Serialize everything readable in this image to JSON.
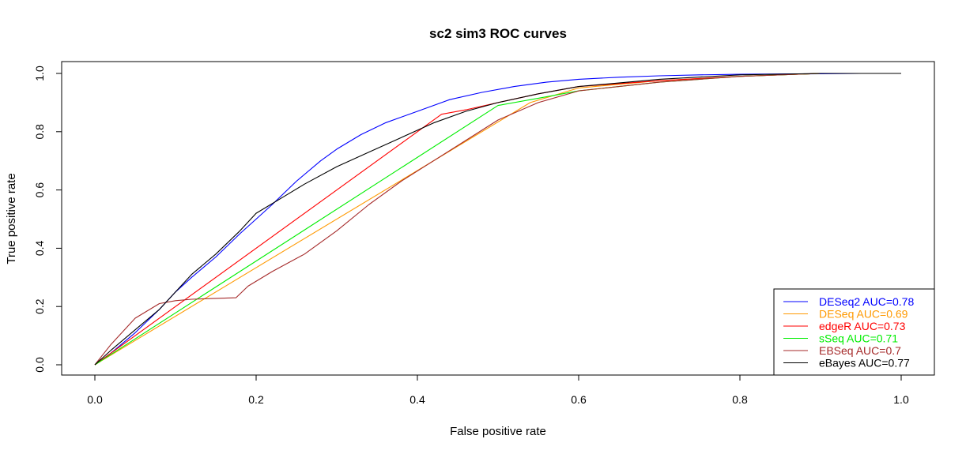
{
  "chart_data": {
    "type": "line",
    "title": "sc2 sim3 ROC curves",
    "xlabel": "False positive rate",
    "ylabel": "True positive rate",
    "xlim": [
      0,
      1
    ],
    "ylim": [
      0,
      1
    ],
    "xticks": [
      "0.0",
      "0.2",
      "0.4",
      "0.6",
      "0.8",
      "1.0"
    ],
    "yticks": [
      "0.0",
      "0.2",
      "0.4",
      "0.6",
      "0.8",
      "1.0"
    ],
    "grid": false,
    "legend_position": "bottom-right",
    "series": [
      {
        "name": "DESeq2 AUC=0.78",
        "color": "#0000ff",
        "x": [
          0,
          0.02,
          0.05,
          0.08,
          0.1,
          0.12,
          0.15,
          0.18,
          0.2,
          0.22,
          0.25,
          0.28,
          0.3,
          0.33,
          0.36,
          0.4,
          0.44,
          0.48,
          0.52,
          0.56,
          0.6,
          0.65,
          0.7,
          0.75,
          0.8,
          0.85,
          0.9,
          0.95,
          1.0
        ],
        "y": [
          0,
          0.04,
          0.11,
          0.19,
          0.25,
          0.3,
          0.37,
          0.45,
          0.5,
          0.55,
          0.63,
          0.7,
          0.74,
          0.79,
          0.83,
          0.87,
          0.91,
          0.935,
          0.955,
          0.97,
          0.98,
          0.987,
          0.992,
          0.995,
          0.997,
          0.998,
          0.999,
          1.0,
          1.0
        ]
      },
      {
        "name": "DESeq AUC=0.69",
        "color": "#ff9900",
        "x": [
          0,
          0.54,
          0.6,
          0.7,
          0.8,
          0.9,
          1.0
        ],
        "y": [
          0,
          0.9,
          0.95,
          0.975,
          0.99,
          1.0,
          1.0
        ]
      },
      {
        "name": "edgeR AUC=0.73",
        "color": "#ff0000",
        "x": [
          0,
          0.43,
          0.46,
          0.5,
          0.55,
          0.6,
          0.7,
          0.8,
          0.9,
          1.0
        ],
        "y": [
          0,
          0.86,
          0.875,
          0.9,
          0.93,
          0.955,
          0.975,
          0.99,
          1.0,
          1.0
        ]
      },
      {
        "name": "sSeq AUC=0.71",
        "color": "#00ee00",
        "x": [
          0,
          0.5,
          0.55,
          0.6,
          0.65,
          0.7,
          0.75,
          0.8,
          0.85,
          0.9,
          1.0
        ],
        "y": [
          0,
          0.89,
          0.915,
          0.94,
          0.955,
          0.97,
          0.98,
          0.99,
          0.995,
          1.0,
          1.0
        ]
      },
      {
        "name": "EBSeq AUC=0.7",
        "color": "#a52a2a",
        "x": [
          0,
          0.02,
          0.05,
          0.08,
          0.1,
          0.12,
          0.15,
          0.175,
          0.19,
          0.22,
          0.26,
          0.3,
          0.34,
          0.38,
          0.42,
          0.46,
          0.5,
          0.55,
          0.6,
          0.7,
          0.8,
          0.9,
          1.0
        ],
        "y": [
          0,
          0.07,
          0.16,
          0.21,
          0.22,
          0.225,
          0.228,
          0.23,
          0.27,
          0.32,
          0.38,
          0.46,
          0.55,
          0.63,
          0.7,
          0.77,
          0.84,
          0.9,
          0.94,
          0.97,
          0.99,
          1.0,
          1.0
        ]
      },
      {
        "name": "eBayes AUC=0.77",
        "color": "#000000",
        "x": [
          0,
          0.02,
          0.05,
          0.08,
          0.1,
          0.12,
          0.15,
          0.18,
          0.2,
          0.23,
          0.26,
          0.3,
          0.34,
          0.38,
          0.42,
          0.46,
          0.5,
          0.55,
          0.6,
          0.7,
          0.8,
          0.9,
          1.0
        ],
        "y": [
          0,
          0.05,
          0.12,
          0.19,
          0.25,
          0.31,
          0.38,
          0.46,
          0.52,
          0.57,
          0.62,
          0.68,
          0.73,
          0.78,
          0.83,
          0.87,
          0.9,
          0.93,
          0.955,
          0.98,
          0.995,
          1.0,
          1.0
        ]
      }
    ]
  }
}
